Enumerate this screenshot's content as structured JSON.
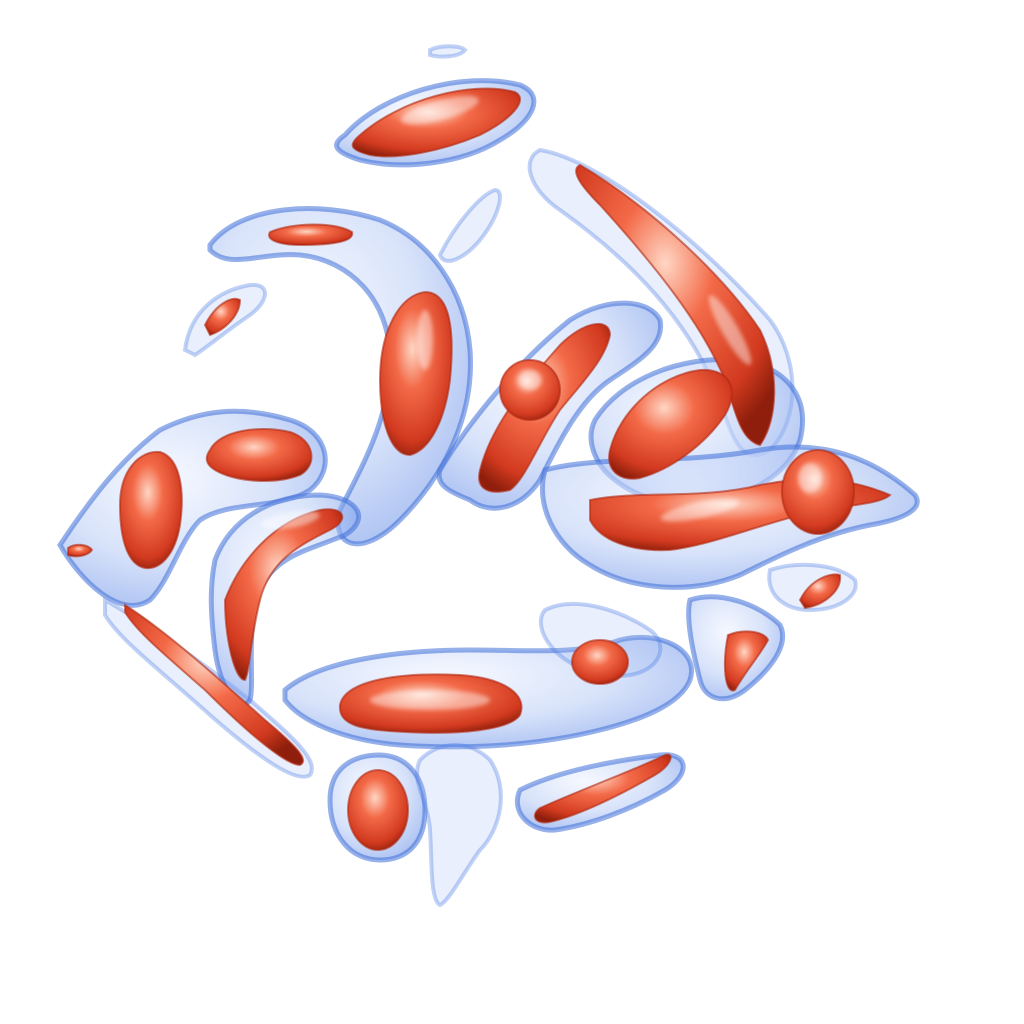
{
  "scene": {
    "kind": "3d-isosurface-render",
    "background_color": "#ffffff",
    "outer_isosurface_color": "#5b86e5",
    "inner_isosurface_color": "#e0442a",
    "highlight_color": "#ffe0d0"
  }
}
